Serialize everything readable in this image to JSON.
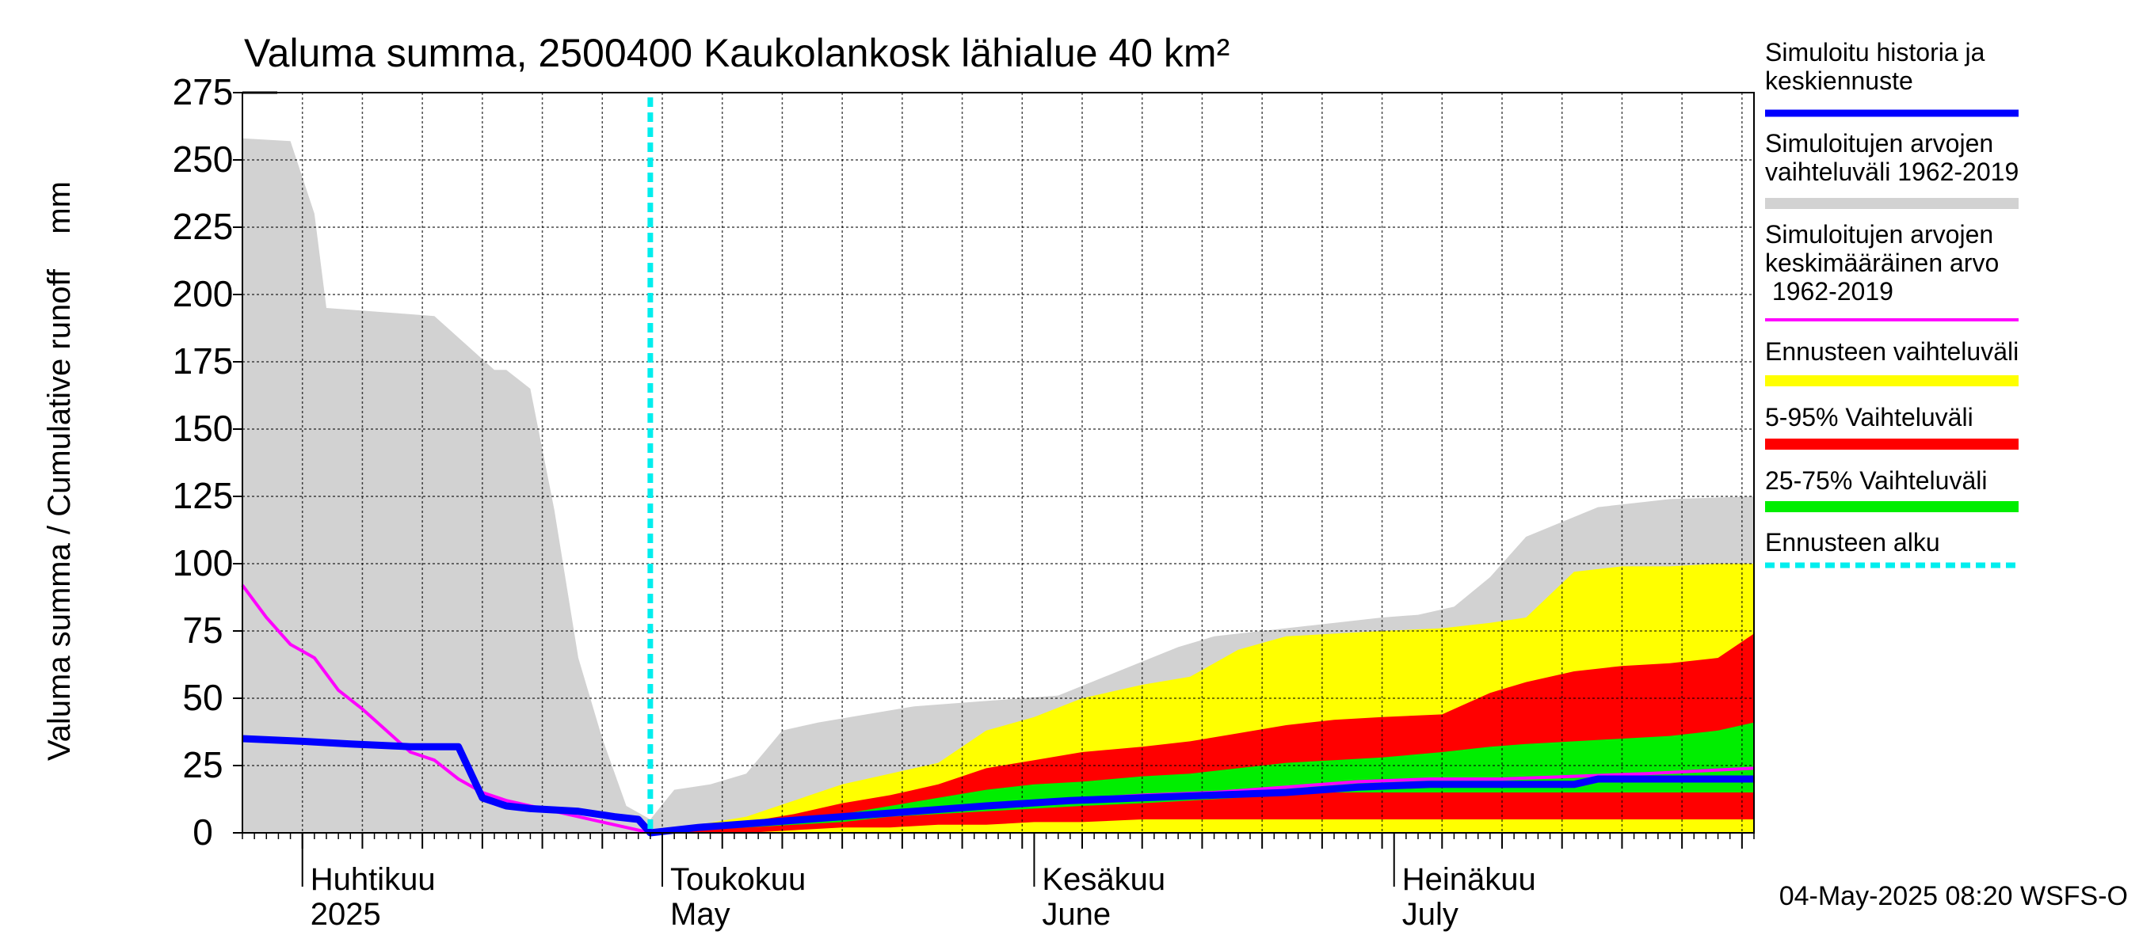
{
  "chart_data": {
    "type": "area",
    "title": "Valuma summa, 2500400 Kaukolankosk lähialue 40 km²",
    "ylabel": "Valuma summa / Cumulative runoff    mm",
    "ylim": [
      0,
      275
    ],
    "y_ticks": [
      0,
      25,
      50,
      75,
      100,
      125,
      150,
      175,
      200,
      225,
      250,
      275
    ],
    "x_start": "2025-03-27",
    "x_end": "2025-07-31",
    "month_labels": [
      {
        "date": "2025-04-01",
        "fi": "Huhtikuu",
        "en": "2025"
      },
      {
        "date": "2025-05-01",
        "fi": "Toukokuu",
        "en": "May"
      },
      {
        "date": "2025-06-01",
        "fi": "Kesäkuu",
        "en": "June"
      },
      {
        "date": "2025-07-01",
        "fi": "Heinäkuu",
        "en": "July"
      }
    ],
    "forecast_start": "2025-04-30",
    "footer": "04-May-2025 08:20 WSFS-O",
    "legend": {
      "hist": "Simuloitu historia ja keskiennuste",
      "range": "Simuloitujen arvojen vaihteluväli 1962-2019",
      "mean": "Simuloitujen arvojen keskimääräinen arvo 1962-2019",
      "fc_range": "Ennusteen vaihteluväli",
      "p5_95": "5-95% Vaihteluväli",
      "p25_75": "25-75% Vaihteluväli",
      "fc_start": "Ennusteen alku"
    },
    "colors": {
      "hist": "#0000ff",
      "range": "#d2d2d2",
      "mean": "#ff00ff",
      "fc_range": "#ffff00",
      "p5_95": "#ff0000",
      "p25_75": "#00ee00",
      "fc_start": "#00eeee"
    },
    "series": [
      {
        "name": "Simuloitujen arvojen vaihteluväli 1962-2019",
        "kind": "band",
        "x": [
          "2025-03-27",
          "2025-03-31",
          "2025-04-02",
          "2025-04-03",
          "2025-04-06",
          "2025-04-09",
          "2025-04-12",
          "2025-04-15",
          "2025-04-17",
          "2025-04-18",
          "2025-04-20",
          "2025-04-22",
          "2025-04-24",
          "2025-04-26",
          "2025-04-28",
          "2025-04-30",
          "2025-05-02",
          "2025-05-05",
          "2025-05-08",
          "2025-05-11",
          "2025-05-14",
          "2025-05-18",
          "2025-05-22",
          "2025-05-28",
          "2025-06-03",
          "2025-06-08",
          "2025-06-13",
          "2025-06-16",
          "2025-06-20",
          "2025-06-24",
          "2025-06-30",
          "2025-07-03",
          "2025-07-06",
          "2025-07-09",
          "2025-07-12",
          "2025-07-18",
          "2025-07-24",
          "2025-07-31"
        ],
        "low": [
          0,
          0,
          0,
          0,
          0,
          0,
          0,
          0,
          0,
          0,
          0,
          0,
          0,
          0,
          0,
          0,
          0,
          0,
          0,
          0,
          0,
          0,
          0,
          0,
          0,
          0,
          0,
          0,
          0,
          0,
          0,
          0,
          0,
          0,
          0,
          0,
          0,
          0
        ],
        "high": [
          258,
          257,
          230,
          195,
          194,
          193,
          192,
          180,
          172,
          172,
          165,
          120,
          65,
          35,
          10,
          5,
          16,
          18,
          22,
          38,
          41,
          44,
          47,
          49,
          51,
          60,
          69,
          73,
          75,
          77,
          80,
          81,
          84,
          95,
          110,
          121,
          124,
          125
        ]
      },
      {
        "name": "Ennusteen vaihteluväli",
        "kind": "band",
        "x": [
          "2025-04-30",
          "2025-05-04",
          "2025-05-08",
          "2025-05-12",
          "2025-05-16",
          "2025-05-20",
          "2025-05-24",
          "2025-05-28",
          "2025-06-01",
          "2025-06-05",
          "2025-06-10",
          "2025-06-14",
          "2025-06-18",
          "2025-06-22",
          "2025-06-26",
          "2025-06-30",
          "2025-07-05",
          "2025-07-09",
          "2025-07-12",
          "2025-07-16",
          "2025-07-20",
          "2025-07-24",
          "2025-07-28",
          "2025-07-31"
        ],
        "low": [
          0,
          0,
          0,
          0,
          0,
          0,
          0,
          0,
          0,
          0,
          0,
          0,
          0,
          0,
          0,
          0,
          0,
          0,
          0,
          0,
          0,
          0,
          0,
          0
        ],
        "high": [
          1,
          3,
          6,
          12,
          18,
          22,
          26,
          38,
          43,
          50,
          55,
          58,
          68,
          73,
          74,
          75,
          76,
          78,
          80,
          97,
          99,
          99,
          100,
          100
        ]
      },
      {
        "name": "5-95% Vaihteluväli",
        "kind": "band",
        "x": [
          "2025-04-30",
          "2025-05-04",
          "2025-05-08",
          "2025-05-12",
          "2025-05-16",
          "2025-05-20",
          "2025-05-24",
          "2025-05-28",
          "2025-06-01",
          "2025-06-05",
          "2025-06-10",
          "2025-06-14",
          "2025-06-18",
          "2025-06-22",
          "2025-06-26",
          "2025-06-30",
          "2025-07-05",
          "2025-07-09",
          "2025-07-12",
          "2025-07-16",
          "2025-07-20",
          "2025-07-24",
          "2025-07-28",
          "2025-07-31"
        ],
        "low": [
          0,
          0,
          0,
          1,
          2,
          2,
          3,
          3,
          4,
          4,
          5,
          5,
          5,
          5,
          5,
          5,
          5,
          5,
          5,
          5,
          5,
          5,
          5,
          5
        ],
        "high": [
          1,
          2,
          4,
          7,
          11,
          14,
          18,
          24,
          27,
          30,
          32,
          34,
          37,
          40,
          42,
          43,
          44,
          52,
          56,
          60,
          62,
          63,
          65,
          74
        ]
      },
      {
        "name": "25-75% Vaihteluväli",
        "kind": "band",
        "x": [
          "2025-04-30",
          "2025-05-04",
          "2025-05-08",
          "2025-05-12",
          "2025-05-16",
          "2025-05-20",
          "2025-05-24",
          "2025-05-28",
          "2025-06-01",
          "2025-06-05",
          "2025-06-10",
          "2025-06-14",
          "2025-06-18",
          "2025-06-22",
          "2025-06-26",
          "2025-06-30",
          "2025-07-05",
          "2025-07-09",
          "2025-07-12",
          "2025-07-16",
          "2025-07-20",
          "2025-07-24",
          "2025-07-28",
          "2025-07-31"
        ],
        "low": [
          0,
          1,
          2,
          3,
          4,
          6,
          7,
          8,
          9,
          10,
          11,
          12,
          13,
          14,
          15,
          15,
          15,
          15,
          15,
          15,
          15,
          15,
          15,
          15
        ],
        "high": [
          1,
          2,
          3,
          5,
          7,
          10,
          13,
          16,
          18,
          19,
          21,
          22,
          24,
          26,
          27,
          28,
          30,
          32,
          33,
          34,
          35,
          36,
          38,
          41
        ]
      },
      {
        "name": "Simuloitujen arvojen keskimääräinen arvo 1962-2019",
        "kind": "line",
        "x": [
          "2025-03-27",
          "2025-03-29",
          "2025-03-31",
          "2025-04-02",
          "2025-04-04",
          "2025-04-06",
          "2025-04-08",
          "2025-04-10",
          "2025-04-12",
          "2025-04-14",
          "2025-04-16",
          "2025-04-18",
          "2025-04-20",
          "2025-04-22",
          "2025-04-24",
          "2025-04-26",
          "2025-04-28",
          "2025-04-30",
          "2025-05-04",
          "2025-05-10",
          "2025-05-16",
          "2025-05-22",
          "2025-05-28",
          "2025-06-03",
          "2025-06-10",
          "2025-06-16",
          "2025-06-22",
          "2025-06-28",
          "2025-07-04",
          "2025-07-10",
          "2025-07-16",
          "2025-07-22",
          "2025-07-31"
        ],
        "values": [
          92,
          80,
          70,
          65,
          53,
          46,
          38,
          30,
          27,
          20,
          15,
          12,
          10,
          8,
          6,
          4,
          2,
          0,
          2,
          4,
          6,
          8,
          10,
          12,
          14,
          15,
          17,
          19,
          20,
          20,
          21,
          22,
          24
        ]
      },
      {
        "name": "Simuloitu historia ja keskiennuste",
        "kind": "line",
        "x": [
          "2025-03-27",
          "2025-04-01",
          "2025-04-05",
          "2025-04-10",
          "2025-04-14",
          "2025-04-16",
          "2025-04-18",
          "2025-04-20",
          "2025-04-24",
          "2025-04-27",
          "2025-04-29",
          "2025-04-30",
          "2025-05-04",
          "2025-05-10",
          "2025-05-16",
          "2025-05-22",
          "2025-05-28",
          "2025-06-04",
          "2025-06-10",
          "2025-06-16",
          "2025-06-22",
          "2025-06-28",
          "2025-07-04",
          "2025-07-10",
          "2025-07-16",
          "2025-07-18",
          "2025-07-31"
        ],
        "values": [
          35,
          34,
          33,
          32,
          32,
          13,
          10,
          9,
          8,
          6,
          5,
          0,
          2,
          4,
          6,
          8,
          10,
          12,
          13,
          14,
          15,
          17,
          18,
          18,
          18,
          20,
          20
        ]
      }
    ]
  }
}
